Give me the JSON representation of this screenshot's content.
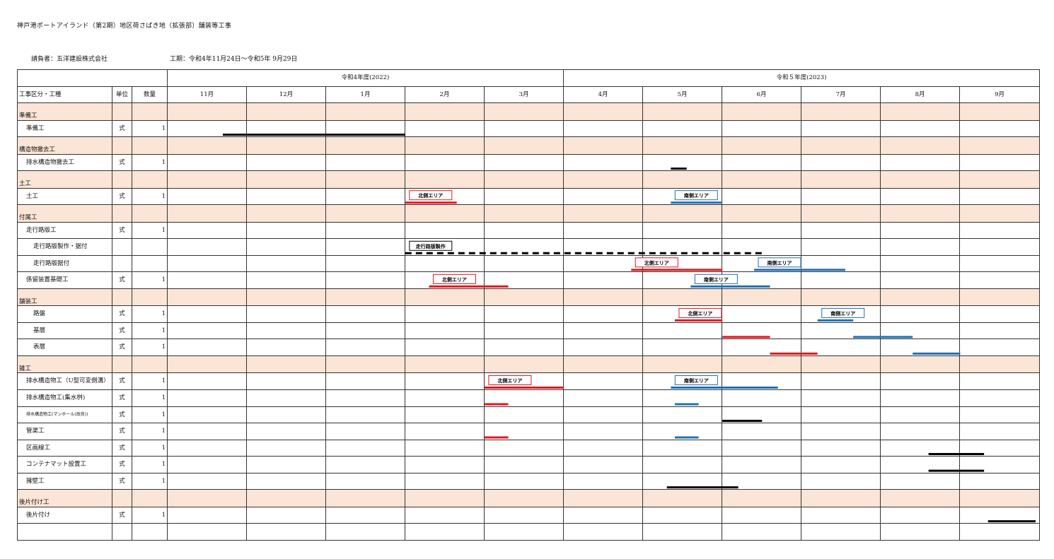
{
  "title": "神戸港ポートアイランド（第2期）地区荷さばき地（拡張部）舗装等工事",
  "contractor": "請負者：五洋建設株式会社",
  "period": "工期：令和4年11月24日～令和5年 9月29日",
  "colors": {
    "north": "#e8141b",
    "south": "#1f6fb5",
    "neutral": "#000000",
    "shade": "#fbe5d6"
  },
  "header": {
    "fy2022": "令和4年度(2022)",
    "fy2023": "令和５年度(2023)",
    "col_item": "工事区分・工種",
    "col_unit": "単位",
    "col_qty": "数量",
    "months": [
      "11月",
      "12月",
      "1月",
      "2月",
      "3月",
      "4月",
      "5月",
      "6月",
      "7月",
      "8月",
      "9月"
    ]
  },
  "rows": [
    {
      "name": "準備工",
      "unit": "",
      "qty": "",
      "shade": true,
      "indent": 0
    },
    {
      "name": "準備工",
      "unit": "式",
      "qty": "1",
      "shade": false,
      "indent": 1
    },
    {
      "name": "構造物撤去工",
      "unit": "",
      "qty": "",
      "shade": true,
      "indent": 0
    },
    {
      "name": "排水構造物撤去工",
      "unit": "式",
      "qty": "1",
      "shade": false,
      "indent": 1
    },
    {
      "name": "土工",
      "unit": "",
      "qty": "",
      "shade": true,
      "indent": 0
    },
    {
      "name": "土工",
      "unit": "式",
      "qty": "1",
      "shade": false,
      "indent": 1
    },
    {
      "name": "付属工",
      "unit": "",
      "qty": "",
      "shade": true,
      "indent": 0
    },
    {
      "name": "走行路版工",
      "unit": "式",
      "qty": "1",
      "shade": false,
      "indent": 1
    },
    {
      "name": "走行路版製作・据付",
      "unit": "",
      "qty": "",
      "shade": false,
      "indent": 2
    },
    {
      "name": "走行路版据付",
      "unit": "",
      "qty": "",
      "shade": false,
      "indent": 2
    },
    {
      "name": "係留装置基礎工",
      "unit": "式",
      "qty": "1",
      "shade": false,
      "indent": 1
    },
    {
      "name": "舗装工",
      "unit": "",
      "qty": "",
      "shade": true,
      "indent": 0
    },
    {
      "name": "路盤",
      "unit": "式",
      "qty": "1",
      "shade": false,
      "indent": 2
    },
    {
      "name": "基層",
      "unit": "式",
      "qty": "1",
      "shade": false,
      "indent": 2
    },
    {
      "name": "表層",
      "unit": "式",
      "qty": "1",
      "shade": false,
      "indent": 2
    },
    {
      "name": "雑工",
      "unit": "",
      "qty": "",
      "shade": true,
      "indent": 0
    },
    {
      "name": "排水構造物工（U型可変側溝）",
      "unit": "式",
      "qty": "1",
      "shade": false,
      "indent": 1
    },
    {
      "name": "排水構造物工(集水桝)",
      "unit": "式",
      "qty": "1",
      "shade": false,
      "indent": 1
    },
    {
      "name": "排水構造物工(マンホール(改良))",
      "unit": "式",
      "qty": "1",
      "shade": false,
      "indent": 1,
      "small": true
    },
    {
      "name": "管渠工",
      "unit": "式",
      "qty": "1",
      "shade": false,
      "indent": 1
    },
    {
      "name": "区画線工",
      "unit": "式",
      "qty": "1",
      "shade": false,
      "indent": 1
    },
    {
      "name": "コンテナマット設置工",
      "unit": "式",
      "qty": "1",
      "shade": false,
      "indent": 1
    },
    {
      "name": "擁壁工",
      "unit": "式",
      "qty": "1",
      "shade": false,
      "indent": 1
    },
    {
      "name": "後片付け工",
      "unit": "",
      "qty": "",
      "shade": true,
      "indent": 0
    },
    {
      "name": "後片付け",
      "unit": "式",
      "qty": "1",
      "shade": false,
      "indent": 1
    },
    {
      "name": "",
      "unit": "",
      "qty": "",
      "shade": false,
      "indent": 0
    }
  ],
  "bars": [
    {
      "row": 1,
      "start": 0.7,
      "end": 3.0,
      "area": "neutral"
    },
    {
      "row": 3,
      "start": 6.35,
      "end": 6.55,
      "area": "neutral"
    },
    {
      "row": 5,
      "start": 3.0,
      "end": 3.65,
      "area": "north",
      "label": "北側エリア"
    },
    {
      "row": 5,
      "start": 6.35,
      "end": 7.0,
      "area": "south",
      "label": "南側エリア"
    },
    {
      "row": 8,
      "start": 3.0,
      "end": 7.5,
      "area": "neutral",
      "dashed": true,
      "label": "走行路版製作"
    },
    {
      "row": 9,
      "start": 5.85,
      "end": 7.0,
      "area": "north",
      "label": "北側エリア"
    },
    {
      "row": 9,
      "start": 7.4,
      "end": 8.55,
      "area": "south",
      "label": "南側エリア"
    },
    {
      "row": 10,
      "start": 3.3,
      "end": 4.3,
      "area": "north",
      "label": "北側エリア"
    },
    {
      "row": 10,
      "start": 6.6,
      "end": 7.6,
      "area": "south",
      "label": "南側エリア"
    },
    {
      "row": 12,
      "start": 6.4,
      "end": 7.0,
      "area": "north",
      "label": "北側エリア"
    },
    {
      "row": 12,
      "start": 8.2,
      "end": 8.65,
      "area": "south",
      "label": "南側エリア"
    },
    {
      "row": 13,
      "start": 7.0,
      "end": 7.6,
      "area": "north"
    },
    {
      "row": 13,
      "start": 8.65,
      "end": 9.4,
      "area": "south"
    },
    {
      "row": 14,
      "start": 7.6,
      "end": 8.2,
      "area": "north"
    },
    {
      "row": 14,
      "start": 9.4,
      "end": 10.0,
      "area": "south"
    },
    {
      "row": 16,
      "start": 4.0,
      "end": 5.0,
      "area": "north",
      "label": "北側エリア"
    },
    {
      "row": 16,
      "start": 6.35,
      "end": 7.7,
      "area": "south",
      "label": "南側エリア"
    },
    {
      "row": 17,
      "start": 4.0,
      "end": 4.3,
      "area": "north"
    },
    {
      "row": 17,
      "start": 6.4,
      "end": 6.7,
      "area": "south"
    },
    {
      "row": 18,
      "start": 7.0,
      "end": 7.5,
      "area": "neutral"
    },
    {
      "row": 19,
      "start": 4.0,
      "end": 4.3,
      "area": "north"
    },
    {
      "row": 19,
      "start": 6.4,
      "end": 6.7,
      "area": "south"
    },
    {
      "row": 20,
      "start": 9.6,
      "end": 10.3,
      "area": "neutral"
    },
    {
      "row": 21,
      "start": 9.6,
      "end": 10.3,
      "area": "neutral"
    },
    {
      "row": 22,
      "start": 6.3,
      "end": 7.2,
      "area": "neutral"
    },
    {
      "row": 24,
      "start": 10.35,
      "end": 10.95,
      "area": "neutral"
    }
  ]
}
